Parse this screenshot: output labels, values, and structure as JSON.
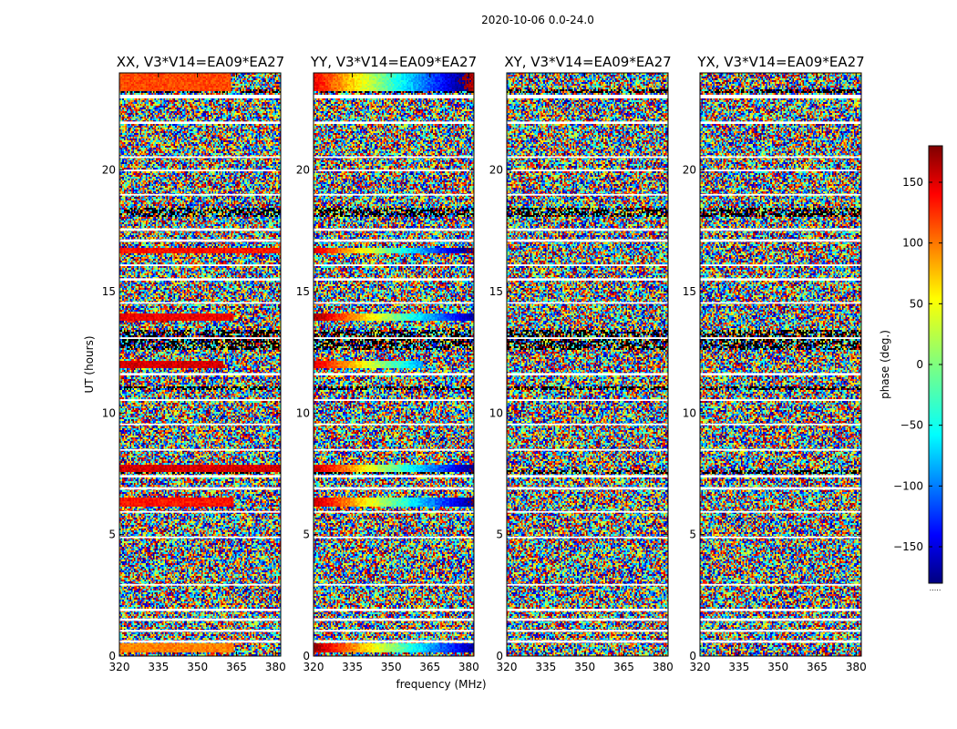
{
  "figure": {
    "suptitle": "2020-10-06 0.0-24.0",
    "xlabel": "frequency (MHz)",
    "ylabel": "UT (hours)",
    "colorbar_label": "phase (deg.)"
  },
  "chart_data": {
    "type": "heatmap",
    "panels": [
      {
        "key": "XX",
        "title": "XX, V3*V14=EA09*EA27"
      },
      {
        "key": "YY",
        "title": "YY, V3*V14=EA09*EA27"
      },
      {
        "key": "XY",
        "title": "XY, V3*V14=EA09*EA27"
      },
      {
        "key": "YX",
        "title": "YX, V3*V14=EA09*EA27"
      }
    ],
    "x": {
      "label": "frequency (MHz)",
      "range": [
        320,
        382
      ],
      "ticks": [
        320,
        335,
        350,
        365,
        380
      ],
      "tick_labels": [
        "320",
        "335",
        "350",
        "365",
        "380"
      ]
    },
    "y": {
      "label": "UT (hours)",
      "range": [
        0,
        24
      ],
      "ticks": [
        0,
        5,
        10,
        15,
        20
      ],
      "tick_labels": [
        "0",
        "5",
        "10",
        "15",
        "20"
      ]
    },
    "colorbar": {
      "label": "phase (deg.)",
      "range": [
        -180,
        180
      ],
      "ticks": [
        150,
        100,
        50,
        0,
        -50,
        -100,
        -150
      ],
      "tick_labels": [
        "150",
        "100",
        "50",
        "0",
        "−50",
        "−100",
        "−150"
      ],
      "colormap": "jet",
      "footer": "....."
    },
    "flagged_hours": [
      {
        "from": 0.55,
        "to": 0.65
      },
      {
        "from": 1.0,
        "to": 1.08
      },
      {
        "from": 1.45,
        "to": 1.55
      },
      {
        "from": 1.85,
        "to": 1.95
      },
      {
        "from": 2.9,
        "to": 2.97
      },
      {
        "from": 4.85,
        "to": 4.92
      },
      {
        "from": 5.9,
        "to": 5.97
      },
      {
        "from": 6.85,
        "to": 6.95
      },
      {
        "from": 7.35,
        "to": 7.45
      },
      {
        "from": 8.45,
        "to": 8.52
      },
      {
        "from": 9.5,
        "to": 9.57
      },
      {
        "from": 10.5,
        "to": 10.57
      },
      {
        "from": 11.55,
        "to": 11.65
      },
      {
        "from": 13.05,
        "to": 13.12
      },
      {
        "from": 14.5,
        "to": 14.57
      },
      {
        "from": 15.45,
        "to": 15.55
      },
      {
        "from": 16.05,
        "to": 16.12
      },
      {
        "from": 17.05,
        "to": 17.15
      },
      {
        "from": 17.5,
        "to": 17.6
      },
      {
        "from": 18.95,
        "to": 19.02
      },
      {
        "from": 19.95,
        "to": 20.02
      },
      {
        "from": 20.5,
        "to": 20.57
      },
      {
        "from": 21.9,
        "to": 22.0
      },
      {
        "from": 22.95,
        "to": 23.1
      }
    ],
    "dense_hours": [
      {
        "from": 18.1,
        "to": 18.4
      },
      {
        "from": 23.2,
        "to": 23.3
      },
      {
        "from": 12.6,
        "to": 13.4
      },
      {
        "from": 11.0,
        "to": 11.1
      },
      {
        "from": 7.55,
        "to": 7.6
      }
    ],
    "coherent_bands": [
      {
        "panel": "XX",
        "from": 23.3,
        "to": 24.0,
        "phase": 110,
        "freq_to": 363
      },
      {
        "panel": "XX",
        "from": 16.6,
        "to": 16.8,
        "phase": 130,
        "freq_to": 382
      },
      {
        "panel": "XX",
        "from": 13.8,
        "to": 14.1,
        "phase": 140,
        "freq_to": 364
      },
      {
        "panel": "XX",
        "from": 11.9,
        "to": 12.1,
        "phase": 150,
        "freq_to": 360
      },
      {
        "panel": "XX",
        "from": 7.6,
        "to": 7.8,
        "phase": 150,
        "freq_to": 382
      },
      {
        "panel": "XX",
        "from": 6.2,
        "to": 6.5,
        "phase": 130,
        "freq_to": 364
      },
      {
        "panel": "XX",
        "from": 0.2,
        "to": 0.5,
        "phase": 90,
        "freq_to": 364
      },
      {
        "panel": "YY",
        "from": 23.3,
        "to": 24.0,
        "phase": 140,
        "freq_to": 382,
        "gradient": true
      },
      {
        "panel": "YY",
        "from": 16.6,
        "to": 16.8,
        "phase": 150,
        "freq_to": 382,
        "gradient": true
      },
      {
        "panel": "YY",
        "from": 13.8,
        "to": 14.1,
        "phase": 170,
        "freq_to": 382,
        "gradient": true
      },
      {
        "panel": "YY",
        "from": 11.9,
        "to": 12.1,
        "phase": 150,
        "freq_to": 362,
        "gradient": true
      },
      {
        "panel": "YY",
        "from": 7.6,
        "to": 7.8,
        "phase": 160,
        "freq_to": 382,
        "gradient": true
      },
      {
        "panel": "YY",
        "from": 6.2,
        "to": 6.5,
        "phase": 160,
        "freq_to": 382,
        "gradient": true
      },
      {
        "panel": "YY",
        "from": 0.2,
        "to": 0.5,
        "phase": 170,
        "freq_to": 382,
        "gradient": true
      }
    ]
  }
}
